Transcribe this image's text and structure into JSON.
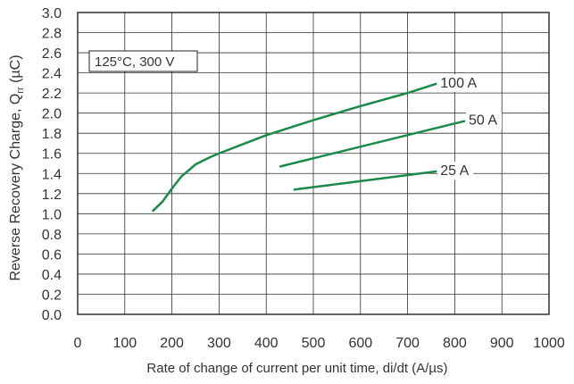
{
  "chart_data": {
    "type": "line",
    "title": "",
    "annotation": "125°C, 300 V",
    "xlabel": "Rate of change of current per unit time, di/dt (A/µs)",
    "ylabel_main": "Reverse Recovery Charge, Q",
    "ylabel_sub": "rr",
    "ylabel_unit": " (µC)",
    "xlim": [
      0,
      1000
    ],
    "ylim": [
      0.0,
      3.0
    ],
    "x_ticks": [
      0,
      100,
      200,
      300,
      400,
      500,
      600,
      700,
      800,
      900,
      1000
    ],
    "y_ticks": [
      "0.0",
      "0.2",
      "0.4",
      "0.6",
      "0.8",
      "1.0",
      "1.2",
      "1.4",
      "1.6",
      "1.8",
      "2.0",
      "2.2",
      "2.4",
      "2.6",
      "2.8",
      "3.0"
    ],
    "grid": true,
    "series_color": "#1a8a4a",
    "series": [
      {
        "name": "100 A",
        "points": [
          [
            160,
            1.03
          ],
          [
            180,
            1.12
          ],
          [
            200,
            1.25
          ],
          [
            220,
            1.37
          ],
          [
            250,
            1.49
          ],
          [
            280,
            1.56
          ],
          [
            300,
            1.6
          ],
          [
            350,
            1.69
          ],
          [
            400,
            1.78
          ],
          [
            500,
            1.93
          ],
          [
            600,
            2.07
          ],
          [
            700,
            2.2
          ],
          [
            760,
            2.29
          ]
        ]
      },
      {
        "name": "50 A",
        "points": [
          [
            430,
            1.47
          ],
          [
            820,
            1.92
          ]
        ]
      },
      {
        "name": "25 A",
        "points": [
          [
            460,
            1.24
          ],
          [
            760,
            1.42
          ]
        ]
      }
    ]
  }
}
